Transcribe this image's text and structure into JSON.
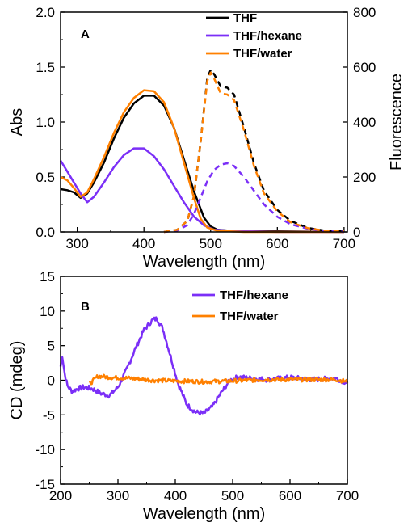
{
  "chart_data": [
    {
      "panel_label": "A",
      "type": "line",
      "xlabel": "Wavelength (nm)",
      "ylabel": "Abs",
      "ylabel_right": "Fluorescence",
      "xlim": [
        275,
        705
      ],
      "ylim": [
        0,
        2.0
      ],
      "ylim_right": [
        0,
        800
      ],
      "x_ticks": [
        300,
        400,
        500,
        600,
        700
      ],
      "y_ticks": [
        "0.0",
        "0.5",
        "1.0",
        "1.5",
        "2.0"
      ],
      "y_ticks_right": [
        "0",
        "200",
        "400",
        "600",
        "800"
      ],
      "legend": {
        "placement": "top-right"
      },
      "series": [
        {
          "name": "THF",
          "kind": "absorption",
          "axis": "left",
          "color": "#000000",
          "style": "solid",
          "points": [
            [
              275,
              0.39
            ],
            [
              285,
              0.38
            ],
            [
              295,
              0.36
            ],
            [
              305,
              0.31
            ],
            [
              315,
              0.35
            ],
            [
              325,
              0.45
            ],
            [
              340,
              0.63
            ],
            [
              355,
              0.85
            ],
            [
              370,
              1.04
            ],
            [
              385,
              1.17
            ],
            [
              400,
              1.24
            ],
            [
              415,
              1.24
            ],
            [
              430,
              1.15
            ],
            [
              445,
              0.95
            ],
            [
              460,
              0.66
            ],
            [
              475,
              0.37
            ],
            [
              490,
              0.13
            ],
            [
              500,
              0.05
            ],
            [
              510,
              0.02
            ],
            [
              530,
              0.01
            ],
            [
              560,
              0.01
            ],
            [
              600,
              0.005
            ],
            [
              700,
              0.0
            ]
          ]
        },
        {
          "name": "THF/hexane",
          "kind": "absorption",
          "axis": "left",
          "color": "#7B2FF7",
          "style": "solid",
          "points": [
            [
              275,
              0.65
            ],
            [
              285,
              0.55
            ],
            [
              295,
              0.45
            ],
            [
              305,
              0.35
            ],
            [
              315,
              0.27
            ],
            [
              325,
              0.32
            ],
            [
              340,
              0.45
            ],
            [
              355,
              0.59
            ],
            [
              370,
              0.7
            ],
            [
              385,
              0.76
            ],
            [
              400,
              0.76
            ],
            [
              415,
              0.69
            ],
            [
              430,
              0.57
            ],
            [
              445,
              0.42
            ],
            [
              460,
              0.27
            ],
            [
              475,
              0.14
            ],
            [
              490,
              0.06
            ],
            [
              505,
              0.02
            ],
            [
              530,
              0.01
            ],
            [
              600,
              0.0
            ],
            [
              700,
              0.0
            ]
          ]
        },
        {
          "name": "THF/water",
          "kind": "absorption",
          "axis": "left",
          "color": "#FF8000",
          "style": "solid",
          "points": [
            [
              275,
              0.5
            ],
            [
              285,
              0.47
            ],
            [
              295,
              0.4
            ],
            [
              305,
              0.32
            ],
            [
              315,
              0.36
            ],
            [
              325,
              0.48
            ],
            [
              340,
              0.68
            ],
            [
              355,
              0.9
            ],
            [
              370,
              1.09
            ],
            [
              385,
              1.22
            ],
            [
              400,
              1.29
            ],
            [
              415,
              1.28
            ],
            [
              430,
              1.18
            ],
            [
              445,
              0.95
            ],
            [
              460,
              0.63
            ],
            [
              475,
              0.31
            ],
            [
              485,
              0.12
            ],
            [
              495,
              0.04
            ],
            [
              510,
              0.01
            ],
            [
              550,
              0.0
            ],
            [
              700,
              0.0
            ]
          ]
        },
        {
          "name": "THF",
          "kind": "fluorescence",
          "axis": "right",
          "color": "#000000",
          "style": "dashed",
          "points": [
            [
              430,
              0
            ],
            [
              450,
              8
            ],
            [
              465,
              40
            ],
            [
              475,
              130
            ],
            [
              485,
              330
            ],
            [
              495,
              560
            ],
            [
              500,
              590
            ],
            [
              505,
              575
            ],
            [
              515,
              530
            ],
            [
              525,
              525
            ],
            [
              535,
              500
            ],
            [
              550,
              380
            ],
            [
              565,
              250
            ],
            [
              580,
              150
            ],
            [
              600,
              80
            ],
            [
              620,
              40
            ],
            [
              645,
              15
            ],
            [
              670,
              5
            ],
            [
              700,
              2
            ]
          ]
        },
        {
          "name": "THF/hexane",
          "kind": "fluorescence",
          "axis": "right",
          "color": "#7B2FF7",
          "style": "dashed",
          "points": [
            [
              430,
              0
            ],
            [
              450,
              5
            ],
            [
              465,
              25
            ],
            [
              475,
              65
            ],
            [
              485,
              125
            ],
            [
              495,
              185
            ],
            [
              505,
              225
            ],
            [
              515,
              245
            ],
            [
              525,
              250
            ],
            [
              535,
              240
            ],
            [
              550,
              200
            ],
            [
              565,
              150
            ],
            [
              580,
              100
            ],
            [
              600,
              55
            ],
            [
              620,
              28
            ],
            [
              645,
              12
            ],
            [
              670,
              4
            ],
            [
              700,
              1
            ]
          ]
        },
        {
          "name": "THF/water",
          "kind": "fluorescence",
          "axis": "right",
          "color": "#FF8000",
          "style": "dashed",
          "points": [
            [
              430,
              0
            ],
            [
              450,
              8
            ],
            [
              465,
              40
            ],
            [
              475,
              130
            ],
            [
              485,
              330
            ],
            [
              495,
              550
            ],
            [
              500,
              580
            ],
            [
              505,
              560
            ],
            [
              515,
              505
            ],
            [
              525,
              500
            ],
            [
              535,
              480
            ],
            [
              550,
              370
            ],
            [
              565,
              240
            ],
            [
              580,
              140
            ],
            [
              600,
              75
            ],
            [
              620,
              35
            ],
            [
              645,
              14
            ],
            [
              670,
              5
            ],
            [
              700,
              2
            ]
          ]
        }
      ]
    },
    {
      "panel_label": "B",
      "type": "line",
      "xlabel": "Wavelength (nm)",
      "ylabel": "CD (mdeg)",
      "xlim": [
        200,
        700
      ],
      "ylim": [
        -15,
        15
      ],
      "x_ticks": [
        200,
        300,
        400,
        500,
        600,
        700
      ],
      "y_ticks": [
        "-15",
        "-10",
        "-5",
        "0",
        "5",
        "10",
        "15"
      ],
      "legend": {
        "placement": "top-right"
      },
      "series": [
        {
          "name": "THF/hexane",
          "color": "#7B2FF7",
          "style": "solid",
          "noise": 0.35,
          "points": [
            [
              200,
              2.0
            ],
            [
              203,
              3.6
            ],
            [
              207,
              1.0
            ],
            [
              212,
              -0.8
            ],
            [
              220,
              -1.6
            ],
            [
              230,
              -1.2
            ],
            [
              240,
              -1.0
            ],
            [
              255,
              -1.2
            ],
            [
              270,
              -1.9
            ],
            [
              285,
              -2.2
            ],
            [
              300,
              -1.0
            ],
            [
              315,
              1.5
            ],
            [
              330,
              4.5
            ],
            [
              345,
              7.2
            ],
            [
              360,
              8.7
            ],
            [
              368,
              8.9
            ],
            [
              378,
              7.5
            ],
            [
              390,
              4.0
            ],
            [
              405,
              -0.5
            ],
            [
              420,
              -3.5
            ],
            [
              435,
              -4.6
            ],
            [
              450,
              -4.8
            ],
            [
              465,
              -3.8
            ],
            [
              480,
              -1.8
            ],
            [
              495,
              0.0
            ],
            [
              510,
              0.5
            ],
            [
              530,
              0.3
            ],
            [
              560,
              0.1
            ],
            [
              600,
              0.4
            ],
            [
              640,
              0.1
            ],
            [
              680,
              0.3
            ],
            [
              700,
              -0.4
            ]
          ]
        },
        {
          "name": "THF/water",
          "color": "#FF8000",
          "style": "solid",
          "noise": 0.3,
          "points": [
            [
              250,
              -0.6
            ],
            [
              265,
              0.6
            ],
            [
              290,
              0.4
            ],
            [
              320,
              0.3
            ],
            [
              360,
              0.0
            ],
            [
              400,
              -0.1
            ],
            [
              450,
              -0.2
            ],
            [
              500,
              -0.1
            ],
            [
              560,
              0.1
            ],
            [
              620,
              0.1
            ],
            [
              680,
              0.1
            ],
            [
              700,
              -0.2
            ]
          ]
        }
      ]
    }
  ]
}
